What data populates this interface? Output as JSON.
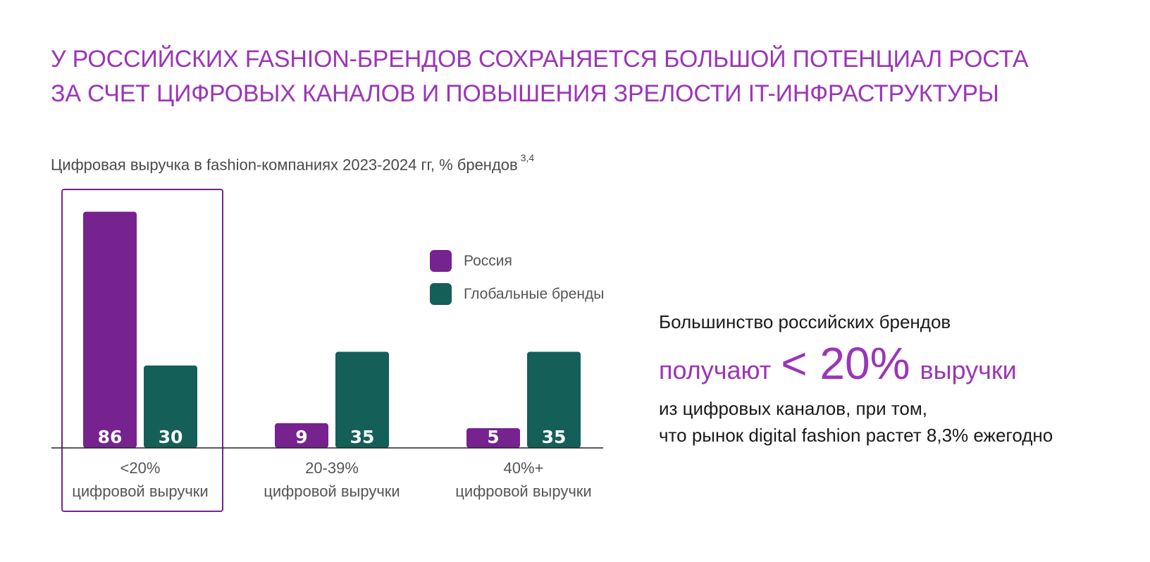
{
  "title": {
    "line1": "У российских fashion-брендов сохраняется большой потенциал роста",
    "line2": "за счет цифровых каналов и повышения зрелости IT-инфраструктуры"
  },
  "chart_title": "Цифровая выручка в fashion-компаниях 2023-2024 гг, % брендов",
  "chart_footnote": "3,4",
  "colors": {
    "accent": "#9b35b8",
    "russia": "#76238f",
    "global": "#145f58"
  },
  "chart_data": {
    "type": "bar",
    "title": "Цифровая выручка в fashion-компаниях 2023-2024 гг, % брендов",
    "categories": [
      [
        "<20%",
        "цифровой выручки"
      ],
      [
        "20-39%",
        "цифровой выручки"
      ],
      [
        "40%+",
        "цифровой выручки"
      ]
    ],
    "series": [
      {
        "name": "Россия",
        "color": "#76238f",
        "values": [
          86,
          9,
          5
        ]
      },
      {
        "name": "Глобальные бренды",
        "color": "#145f58",
        "values": [
          30,
          35,
          35
        ]
      }
    ],
    "highlighted_category": 0,
    "legend_position": "upper-right of chart",
    "grid": false
  },
  "callout": {
    "line1": "Большинство российских брендов",
    "line2_prefix": "получают",
    "line2_value": "< 20%",
    "line2_suffix": "выручки",
    "line3": "из цифровых каналов, при том,",
    "line4": "что рынок digital fashion растет 8,3% ежегодно"
  }
}
